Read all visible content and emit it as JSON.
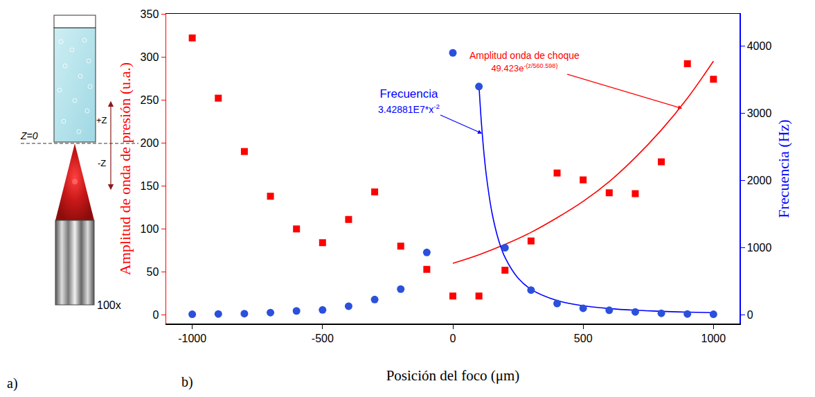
{
  "chart_data": {
    "type": "scatter",
    "xlabel": "Posición del foco (μm)",
    "ylabel": "Amplitud de onda de presión (u.a.)",
    "y2label": "Frecuencia (Hz)",
    "xlim": [
      -1100,
      1100
    ],
    "xticks": [
      -1000,
      -500,
      0,
      500,
      1000
    ],
    "ylim": [
      -10,
      350
    ],
    "yticks": [
      0,
      50,
      100,
      150,
      200,
      250,
      300,
      350
    ],
    "y2lim": [
      -128,
      4480
    ],
    "y2ticks": [
      0,
      1000,
      2000,
      3000,
      4000
    ],
    "grid": false,
    "series": [
      {
        "type": "line",
        "color": "#ff0000",
        "axis": "y",
        "x": [
          0,
          100,
          200,
          300,
          400,
          500,
          600,
          700,
          800,
          900,
          1000
        ],
        "values": [
          60,
          70,
          82,
          96,
          113,
          132,
          155,
          183,
          215,
          252,
          295
        ]
      },
      {
        "type": "scatter",
        "marker": "square",
        "color": "#ff0000",
        "axis": "y",
        "x": [
          -1000,
          -900,
          -800,
          -700,
          -600,
          -500,
          -400,
          -300,
          -200,
          -100,
          0,
          100,
          200,
          300,
          400,
          500,
          600,
          700,
          800,
          900,
          1000
        ],
        "values": [
          322,
          252,
          190,
          138,
          100,
          84,
          111,
          143,
          80,
          53,
          22,
          22,
          52,
          86,
          165,
          157,
          142,
          141,
          178,
          292,
          274
        ]
      },
      {
        "type": "line",
        "color": "#0000ff",
        "axis": "y2",
        "x": [
          100,
          110,
          120,
          130,
          150,
          175,
          200,
          250,
          300,
          400,
          500,
          600,
          700,
          800,
          900,
          1000
        ],
        "values": [
          3429,
          2834,
          2381,
          2029,
          1524,
          1120,
          857,
          549,
          381,
          214,
          137,
          95,
          70,
          54,
          42,
          34
        ]
      },
      {
        "type": "scatter",
        "marker": "circle",
        "color": "#2b50dc",
        "axis": "y2",
        "x": [
          -1000,
          -900,
          -800,
          -700,
          -600,
          -500,
          -400,
          -300,
          -200,
          -100,
          0,
          100,
          200,
          300,
          400,
          500,
          600,
          700,
          800,
          900,
          1000
        ],
        "values": [
          10,
          15,
          20,
          35,
          60,
          75,
          130,
          230,
          385,
          930,
          3900,
          3400,
          1000,
          370,
          170,
          100,
          70,
          45,
          25,
          15,
          10
        ]
      }
    ],
    "annotations": [
      {
        "text": "Amplitud onda de choque",
        "formula": "49.423e",
        "exponent": "-(z/560.598)",
        "color": "#ff0000",
        "axis": "y",
        "x": 880,
        "y": 240
      },
      {
        "text": "Frecuencia",
        "formula": "3.42881E7*x",
        "exponent": "-2",
        "color": "#0000ff",
        "axis": "y2",
        "x": 112,
        "y": 2700
      }
    ]
  },
  "diagram": {
    "zero": "Z=0",
    "plus": "+Z",
    "minus": "-Z",
    "objective": "100x"
  },
  "panels": [
    "a)",
    "b)"
  ]
}
